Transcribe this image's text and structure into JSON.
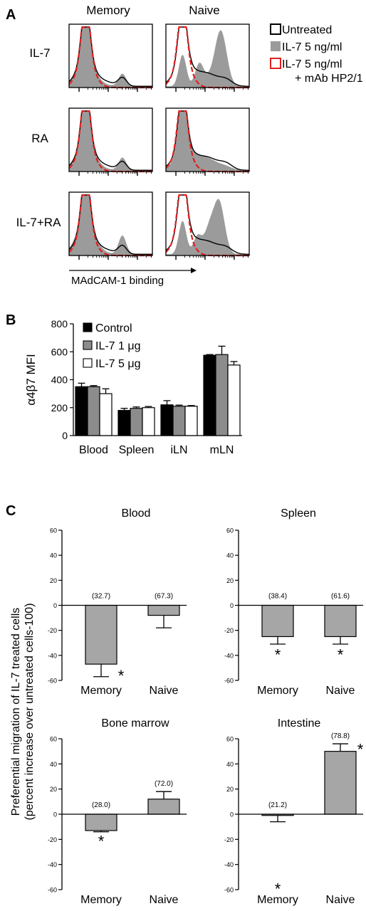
{
  "colors": {
    "gray_fill": "#9b9b9b",
    "untreated_line": "#000000",
    "hp21_line": "#e0201f",
    "control_bar": "#000000",
    "il7_1ug_bar": "#8c8c8c",
    "il7_5ug_bar": "#ffffff"
  },
  "panel_a": {
    "letter": "A",
    "col_headers": [
      "Memory",
      "Naive"
    ],
    "row_labels": [
      "IL-7",
      "RA",
      "IL-7+RA"
    ],
    "axis_label": "MAdCAM-1 binding",
    "legend": [
      {
        "label": "Untreated",
        "style": "black-outline"
      },
      {
        "label": "IL-7 5 ng/ml",
        "style": "gray-fill"
      },
      {
        "label": "IL-7 5 ng/ml",
        "label2": "+ mAb HP2/1",
        "style": "red-outline"
      }
    ]
  },
  "panel_b": {
    "letter": "B"
  },
  "panel_c": {
    "letter": "C"
  },
  "chart_data": [
    {
      "type": "histogram-overlay",
      "panel": "A",
      "rows": [
        "IL-7",
        "RA",
        "IL-7+RA"
      ],
      "columns": [
        "Memory",
        "Naive"
      ],
      "xlabel": "MAdCAM-1 binding",
      "series": [
        "Untreated",
        "IL-7 5 ng/ml",
        "IL-7 5 ng/ml + mAb HP2/1"
      ]
    },
    {
      "type": "bar",
      "panel": "B",
      "categories": [
        "Blood",
        "Spleen",
        "iLN",
        "mLN"
      ],
      "series": [
        {
          "name": "Control",
          "values": [
            350,
            180,
            220,
            575
          ],
          "errors": [
            25,
            15,
            30,
            5
          ]
        },
        {
          "name": "IL-7 1 μg",
          "values": [
            350,
            195,
            210,
            580
          ],
          "errors": [
            8,
            10,
            8,
            60
          ]
        },
        {
          "name": "IL-7 5 μg",
          "values": [
            300,
            200,
            210,
            505
          ],
          "errors": [
            35,
            8,
            5,
            25
          ]
        }
      ],
      "ylabel": "α4β7 MFI",
      "yticks": [
        "0",
        "200",
        "400",
        "600",
        "800"
      ],
      "ylim": [
        0,
        800
      ],
      "legend_position": "top-left"
    },
    {
      "type": "bar",
      "panel": "C",
      "ylabel": "Preferential migration of IL-7 treated cells",
      "ylabel2": "(percent increase over untreated cells-100)",
      "ylim": [
        -60,
        60
      ],
      "yticks": [
        "60",
        "40",
        "20",
        "0",
        "-20",
        "-40",
        "-60"
      ],
      "subplots": [
        {
          "title": "Blood",
          "categories": [
            "Memory",
            "Naive"
          ],
          "values": [
            -47,
            -8
          ],
          "errors": [
            10,
            10
          ],
          "labels": [
            "(32.7)",
            "(67.3)"
          ],
          "significant": [
            true,
            false
          ]
        },
        {
          "title": "Spleen",
          "categories": [
            "Memory",
            "Naive"
          ],
          "values": [
            -25,
            -25
          ],
          "errors": [
            6,
            6
          ],
          "labels": [
            "(38.4)",
            "(61.6)"
          ],
          "significant": [
            true,
            true
          ]
        },
        {
          "title": "Bone marrow",
          "categories": [
            "Memory",
            "Naive"
          ],
          "values": [
            -13,
            12
          ],
          "errors": [
            1,
            6
          ],
          "labels": [
            "(28.0)",
            "(72.0)"
          ],
          "significant": [
            true,
            false
          ]
        },
        {
          "title": "Intestine",
          "categories": [
            "Memory",
            "Naive"
          ],
          "values": [
            -1,
            50
          ],
          "errors": [
            5,
            6
          ],
          "labels": [
            "(21.2)",
            "(78.8)"
          ],
          "significant": [
            true,
            true
          ]
        }
      ],
      "significance_mark": "*"
    }
  ]
}
